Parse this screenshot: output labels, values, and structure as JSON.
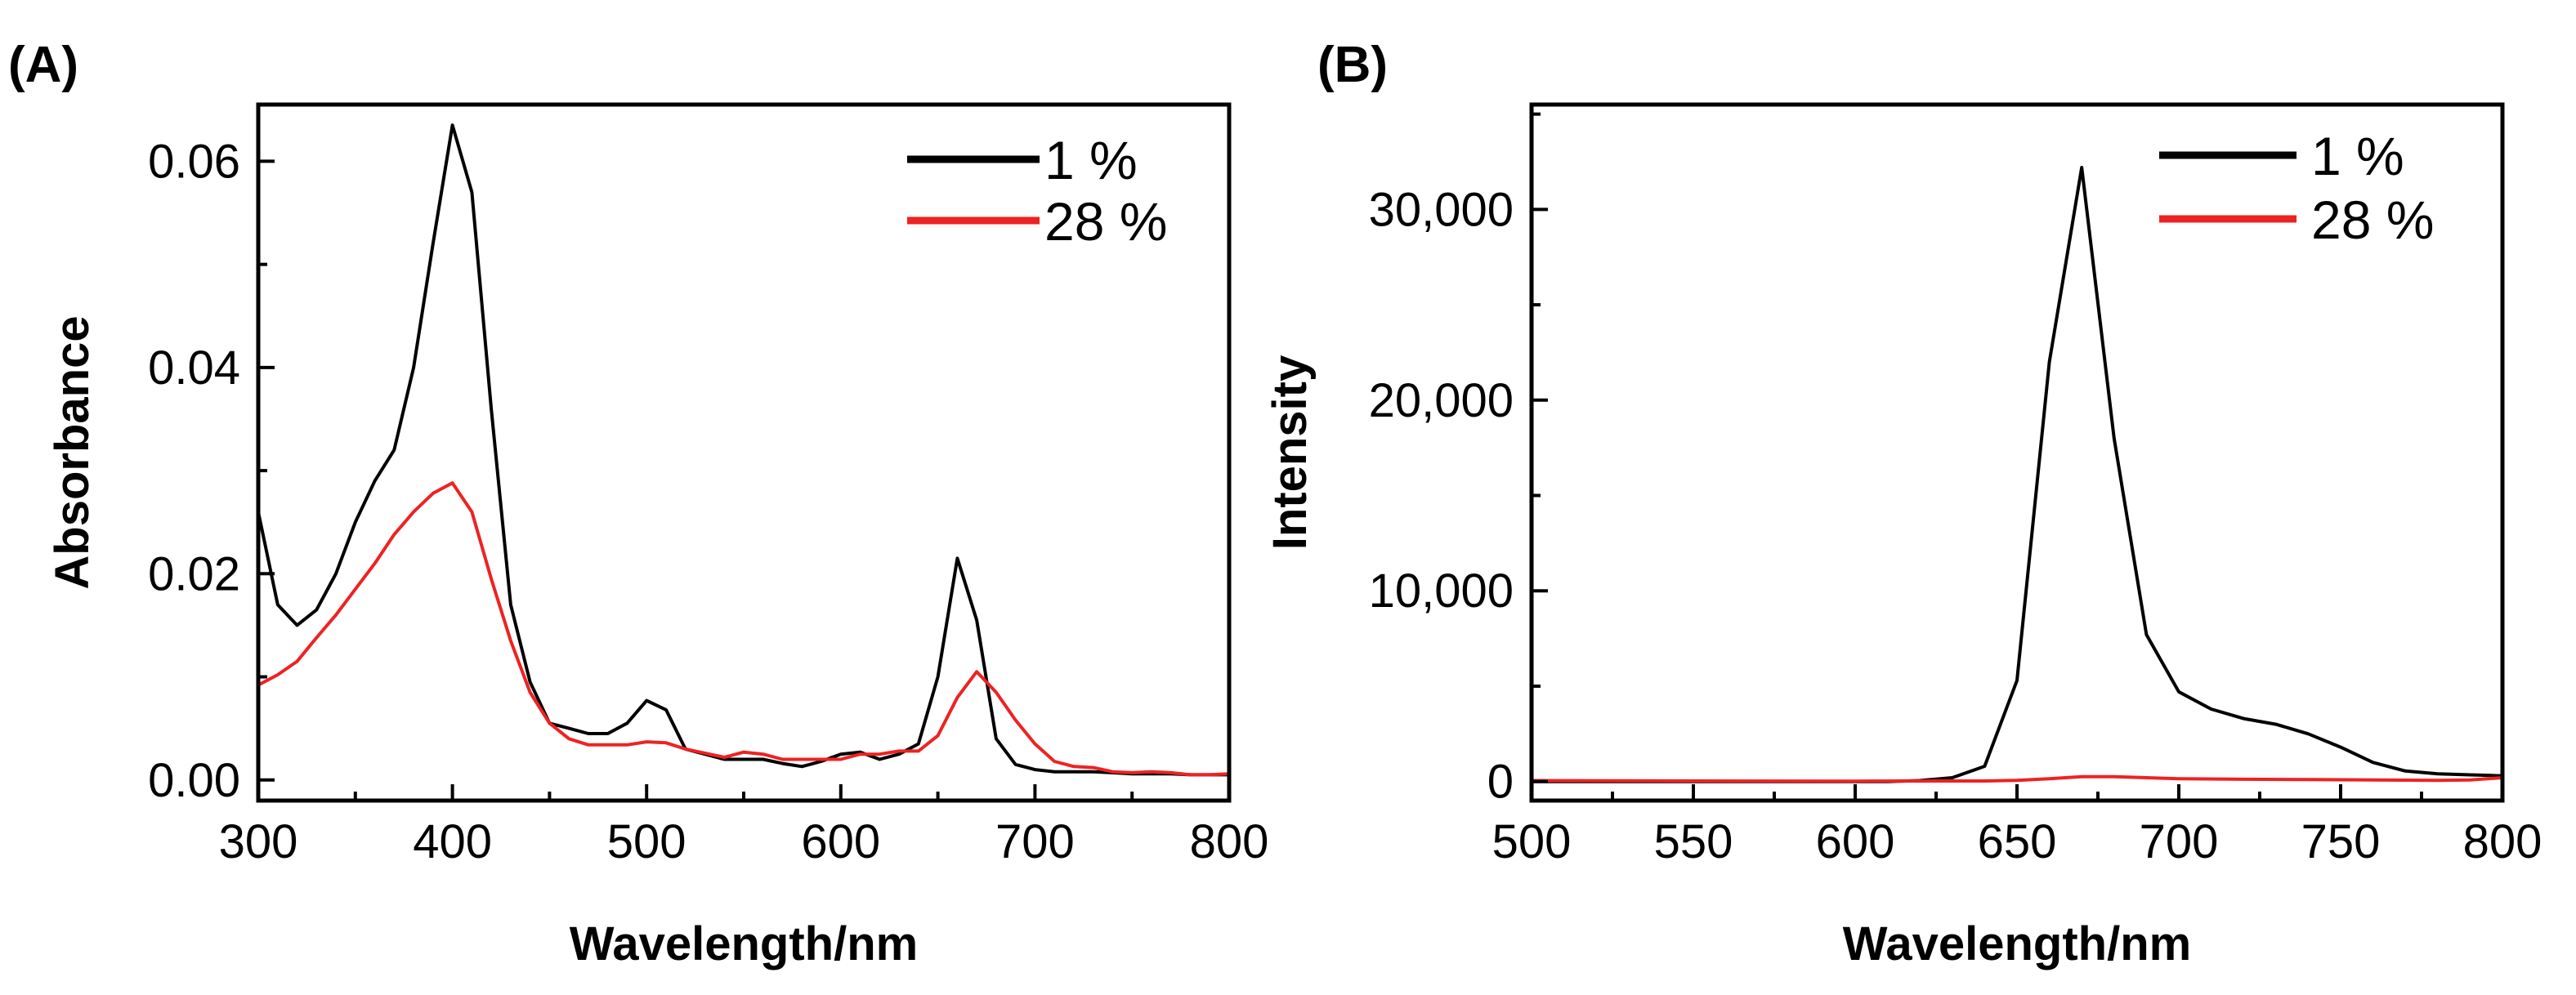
{
  "colors": {
    "series_1pct": "#000000",
    "series_28pct": "#ee2222"
  },
  "chart_data": [
    {
      "type": "line",
      "panel_label": "(A)",
      "title": "",
      "xlabel": "Wavelength/nm",
      "ylabel": "Absorbance",
      "xlim": [
        300,
        800
      ],
      "ylim": [
        -0.002,
        0.0655
      ],
      "xticks": [
        300,
        400,
        500,
        600,
        700,
        800
      ],
      "xtick_labels": [
        "300",
        "400",
        "500",
        "600",
        "700",
        "800"
      ],
      "yticks": [
        0.0,
        0.02,
        0.04,
        0.06
      ],
      "ytick_labels": [
        "0.00",
        "0.02",
        "0.04",
        "0.06"
      ],
      "x_minor_step": 50,
      "y_minor_step": 0.01,
      "grid": false,
      "legend_position": "top-right",
      "series": [
        {
          "name": "1 %",
          "color": "#000000",
          "x": [
            300,
            310,
            320,
            330,
            340,
            350,
            360,
            370,
            380,
            390,
            400,
            410,
            420,
            430,
            440,
            450,
            460,
            470,
            480,
            490,
            500,
            510,
            520,
            530,
            540,
            550,
            560,
            570,
            580,
            590,
            600,
            610,
            620,
            630,
            640,
            650,
            660,
            670,
            680,
            690,
            700,
            710,
            720,
            730,
            740,
            750,
            760,
            770,
            780,
            790,
            800
          ],
          "values": [
            0.026,
            0.017,
            0.015,
            0.0165,
            0.02,
            0.025,
            0.029,
            0.032,
            0.04,
            0.052,
            0.0635,
            0.057,
            0.036,
            0.017,
            0.0095,
            0.0055,
            0.005,
            0.0045,
            0.0045,
            0.0055,
            0.0077,
            0.0068,
            0.003,
            0.0025,
            0.002,
            0.002,
            0.002,
            0.0016,
            0.0013,
            0.0018,
            0.0025,
            0.0027,
            0.002,
            0.0025,
            0.0035,
            0.01,
            0.0215,
            0.0155,
            0.004,
            0.0015,
            0.001,
            0.0008,
            0.0008,
            0.0008,
            0.0007,
            0.0006,
            0.0006,
            0.0006,
            0.0005,
            0.0005,
            0.0005
          ]
        },
        {
          "name": "28 %",
          "color": "#ee2222",
          "x": [
            300,
            310,
            320,
            330,
            340,
            350,
            360,
            370,
            380,
            390,
            400,
            410,
            420,
            430,
            440,
            450,
            460,
            470,
            480,
            490,
            500,
            510,
            520,
            530,
            540,
            550,
            560,
            570,
            580,
            590,
            600,
            610,
            620,
            630,
            640,
            650,
            660,
            670,
            680,
            690,
            700,
            710,
            720,
            730,
            740,
            750,
            760,
            770,
            780,
            790,
            800
          ],
          "values": [
            0.0092,
            0.0102,
            0.0115,
            0.0138,
            0.016,
            0.0185,
            0.021,
            0.0238,
            0.026,
            0.0278,
            0.0288,
            0.026,
            0.0195,
            0.0135,
            0.0085,
            0.0055,
            0.004,
            0.0034,
            0.0034,
            0.0034,
            0.0037,
            0.0036,
            0.003,
            0.0026,
            0.0022,
            0.0027,
            0.0025,
            0.002,
            0.002,
            0.002,
            0.002,
            0.0025,
            0.0025,
            0.0028,
            0.0028,
            0.0043,
            0.008,
            0.0105,
            0.0085,
            0.0058,
            0.0035,
            0.0018,
            0.0013,
            0.0012,
            0.0008,
            0.0007,
            0.0008,
            0.0007,
            0.0005,
            0.0005,
            0.0006
          ]
        }
      ]
    },
    {
      "type": "line",
      "panel_label": "(B)",
      "title": "",
      "xlabel": "Wavelength/nm",
      "ylabel": "Intensity",
      "xlim": [
        500,
        800
      ],
      "ylim": [
        -1000,
        35500
      ],
      "xticks": [
        500,
        550,
        600,
        650,
        700,
        750,
        800
      ],
      "xtick_labels": [
        "500",
        "550",
        "600",
        "650",
        "700",
        "750",
        "800"
      ],
      "yticks": [
        0,
        10000,
        20000,
        30000
      ],
      "ytick_labels": [
        "0",
        "10,000",
        "20,000",
        "30,000"
      ],
      "x_minor_step": 25,
      "y_minor_step": 5000,
      "grid": false,
      "legend_position": "top-right",
      "series": [
        {
          "name": "1 %",
          "color": "#000000",
          "x": [
            500,
            520,
            540,
            560,
            580,
            600,
            610,
            620,
            630,
            640,
            650,
            660,
            670,
            680,
            690,
            700,
            710,
            720,
            730,
            740,
            750,
            760,
            770,
            780,
            790,
            800
          ],
          "values": [
            0,
            0,
            0,
            0,
            0,
            0,
            0,
            50,
            200,
            800,
            5300,
            22000,
            32200,
            18000,
            7700,
            4700,
            3800,
            3300,
            3000,
            2500,
            1800,
            1000,
            550,
            400,
            350,
            300
          ]
        },
        {
          "name": "28 %",
          "color": "#ee2222",
          "x": [
            500,
            550,
            600,
            640,
            650,
            660,
            670,
            680,
            690,
            700,
            720,
            740,
            760,
            780,
            790,
            800
          ],
          "values": [
            50,
            30,
            20,
            30,
            60,
            150,
            250,
            250,
            200,
            150,
            120,
            100,
            80,
            60,
            80,
            200
          ]
        }
      ]
    }
  ]
}
